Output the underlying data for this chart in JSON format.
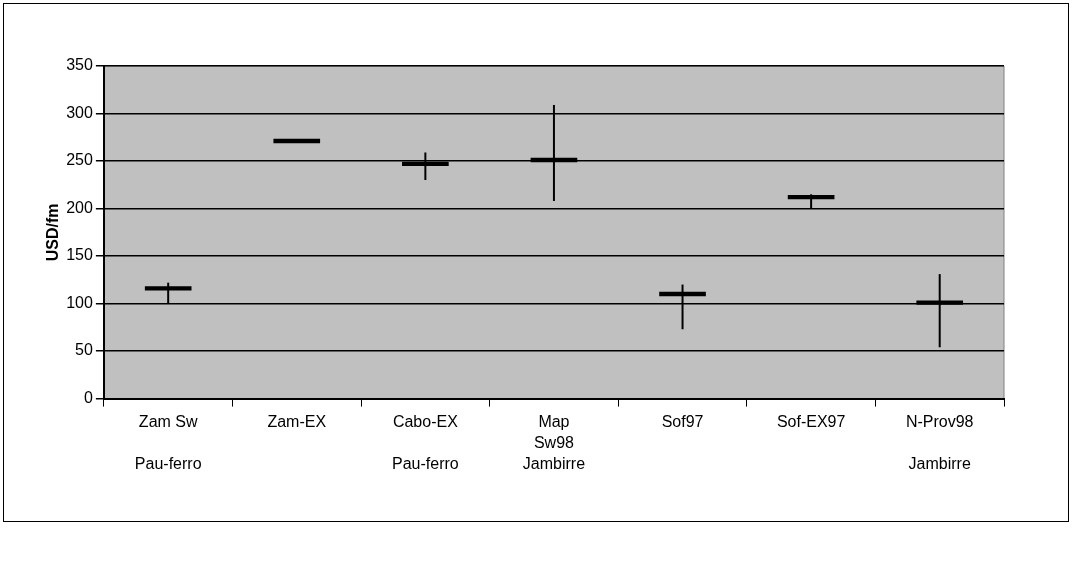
{
  "chart_data": {
    "type": "candlestick",
    "ylabel": "USD/fm",
    "categories": [
      "Zam Sw\n\nPau-ferro",
      "Zam-EX",
      "Cabo-EX\n\nPau-ferro",
      "Map\nSw98\nJambirre",
      "Sof97",
      "Sof-EX97",
      "N-Prov98\n\nJambirre"
    ],
    "ohlc": [
      [
        118,
        122,
        100,
        114
      ],
      [
        273,
        273,
        269,
        269
      ],
      [
        249,
        259,
        230,
        245
      ],
      [
        253,
        309,
        208,
        249
      ],
      [
        112,
        120,
        73,
        108
      ],
      [
        214,
        215,
        200,
        210
      ],
      [
        103,
        131,
        54,
        99
      ]
    ],
    "color": "#000000",
    "ylim": [
      0,
      350
    ],
    "yticks": [
      0,
      50,
      100,
      150,
      200,
      250,
      300,
      350
    ],
    "grid": "y",
    "legend": false
  }
}
